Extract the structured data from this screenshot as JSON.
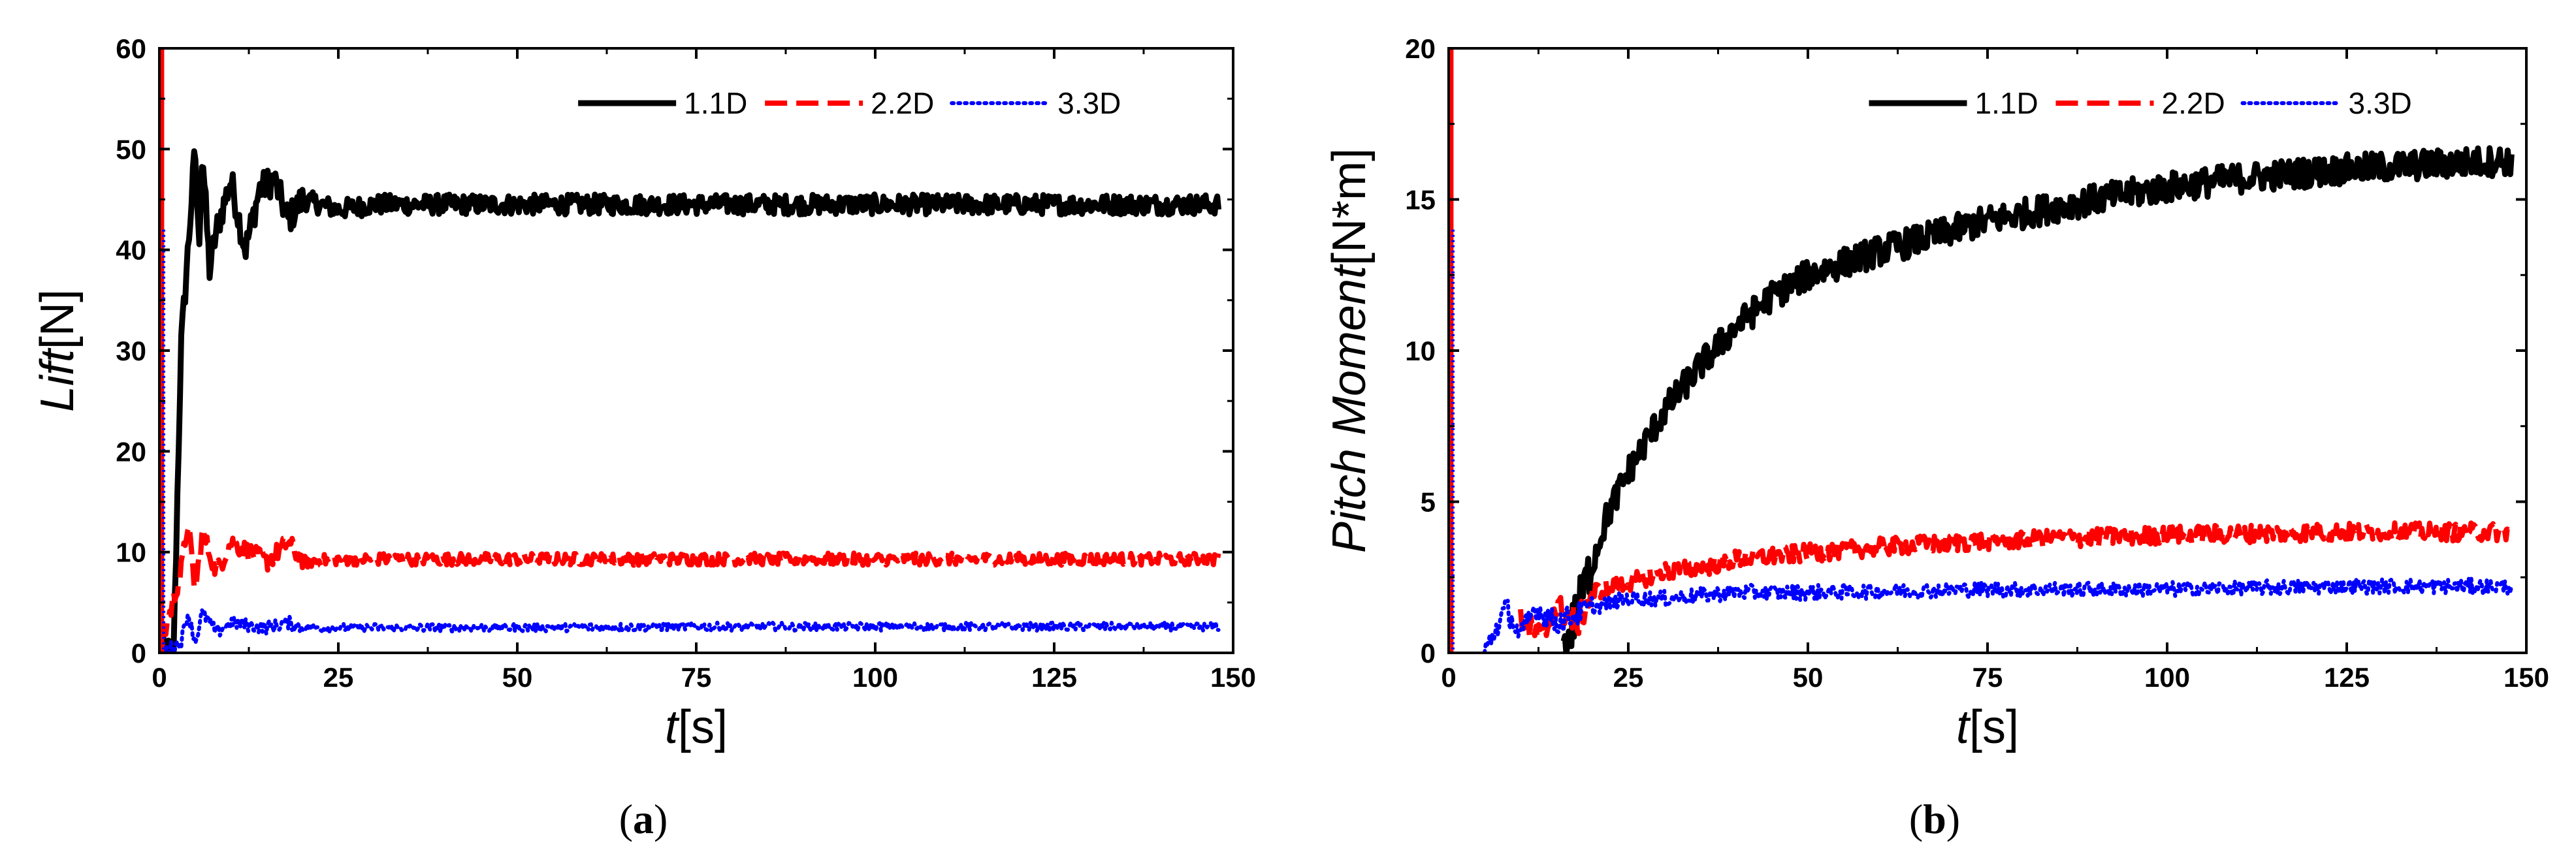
{
  "chart_data": [
    {
      "type": "line",
      "panel_label": "a",
      "xlabel": "t[s]",
      "xlabel_var": "t",
      "xlabel_unit": "[s]",
      "ylabel": "Lift[N]",
      "ylabel_var": "Lift",
      "ylabel_unit": "[N]",
      "xlim": [
        0,
        150
      ],
      "ylim": [
        0,
        60
      ],
      "xticks": [
        0,
        25,
        50,
        75,
        100,
        125,
        150
      ],
      "yticks": [
        0,
        10,
        20,
        30,
        40,
        50,
        60
      ],
      "legend_position": "top-right",
      "series": [
        {
          "name": "1.1D",
          "style": "solid",
          "color": "#000000",
          "x": [
            0,
            2,
            3,
            4,
            5,
            5.5,
            6,
            7,
            8,
            10,
            12,
            14,
            16,
            18,
            20,
            25,
            30,
            40,
            50,
            75,
            100,
            125,
            148
          ],
          "y": [
            0,
            0,
            30,
            40,
            50,
            40,
            50,
            38,
            42,
            47,
            40,
            46,
            47,
            43,
            45,
            44,
            44.5,
            44.5,
            44.5,
            44.5,
            44.5,
            44.5,
            44.5
          ],
          "noise": 1.0
        },
        {
          "name": "2.2D",
          "style": "dashed",
          "color": "#ff0000",
          "x": [
            0,
            3,
            4,
            5,
            6,
            8,
            10,
            15,
            18,
            20,
            25,
            30,
            50,
            75,
            100,
            125,
            148
          ],
          "y": [
            0,
            8,
            13,
            6,
            12,
            8,
            11,
            9,
            11,
            9,
            9.3,
            9.3,
            9.3,
            9.3,
            9.3,
            9.3,
            9.3
          ],
          "noise": 0.6
        },
        {
          "name": "3.3D",
          "style": "dotted",
          "color": "#0000ff",
          "x": [
            0,
            3,
            4,
            5,
            6,
            8,
            10,
            15,
            18,
            20,
            25,
            50,
            75,
            100,
            125,
            148
          ],
          "y": [
            0,
            1,
            4,
            1,
            4,
            2,
            3,
            2.5,
            3,
            2.5,
            2.5,
            2.5,
            2.6,
            2.6,
            2.6,
            2.6
          ],
          "noise": 0.4
        }
      ]
    },
    {
      "type": "line",
      "panel_label": "b",
      "xlabel": "t[s]",
      "xlabel_var": "t",
      "xlabel_unit": "[s]",
      "ylabel": "Pitch Moment[N*m]",
      "ylabel_var": "Pitch Moment",
      "ylabel_unit": "[N*m]",
      "xlim": [
        0,
        150
      ],
      "ylim": [
        0,
        20
      ],
      "xticks": [
        0,
        25,
        50,
        75,
        100,
        125,
        150
      ],
      "yticks": [
        0,
        5,
        10,
        15,
        20
      ],
      "legend_position": "top-right",
      "series": [
        {
          "name": "1.1D",
          "style": "solid",
          "color": "#000000",
          "x": [
            16,
            18,
            20,
            22,
            25,
            30,
            35,
            40,
            45,
            50,
            60,
            75,
            90,
            100,
            110,
            125,
            140,
            148
          ],
          "y": [
            0,
            1.5,
            3,
            4.5,
            6,
            8,
            9.5,
            10.8,
            11.8,
            12.5,
            13.3,
            14.3,
            15,
            15.4,
            15.7,
            16,
            16.2,
            16.3
          ],
          "noise": 0.5
        },
        {
          "name": "2.2D",
          "style": "dashed",
          "color": "#ff0000",
          "x": [
            10,
            13,
            15,
            18,
            20,
            25,
            30,
            35,
            40,
            50,
            60,
            75,
            100,
            125,
            148
          ],
          "y": [
            1,
            0.5,
            1.5,
            1,
            2,
            2.3,
            2.7,
            2.8,
            3.1,
            3.3,
            3.5,
            3.7,
            3.9,
            4.0,
            4.0
          ],
          "noise": 0.3
        },
        {
          "name": "3.3D",
          "style": "dotted",
          "color": "#0000ff",
          "x": [
            5,
            8,
            10,
            12,
            15,
            20,
            25,
            30,
            40,
            50,
            75,
            100,
            125,
            148
          ],
          "y": [
            0,
            1.5,
            0.5,
            1.5,
            1,
            1.5,
            1.8,
            1.8,
            2.0,
            2.0,
            2.1,
            2.1,
            2.2,
            2.2
          ],
          "noise": 0.25
        }
      ]
    }
  ]
}
